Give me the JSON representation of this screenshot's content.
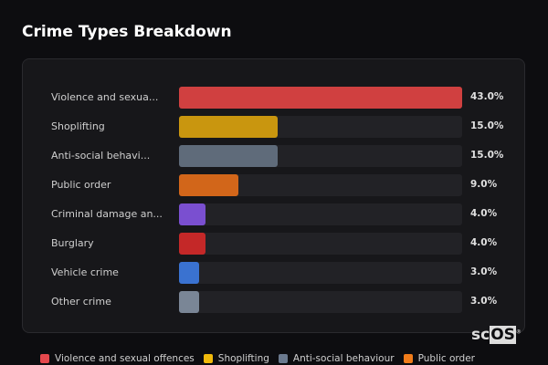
{
  "title": "Crime Types Breakdown",
  "chart_data": {
    "type": "bar",
    "orientation": "horizontal",
    "title": "Crime Types Breakdown",
    "categories": [
      "Violence and sexua...",
      "Shoplifting",
      "Anti-social behavi...",
      "Public order",
      "Criminal damage an...",
      "Burglary",
      "Vehicle crime",
      "Other crime"
    ],
    "values": [
      43.0,
      15.0,
      15.0,
      9.0,
      4.0,
      4.0,
      3.0,
      3.0
    ],
    "value_labels": [
      "43.0%",
      "15.0%",
      "15.0%",
      "9.0%",
      "4.0%",
      "4.0%",
      "3.0%",
      "3.0%"
    ],
    "colors": [
      "#d04040",
      "#c9960f",
      "#5f6b7a",
      "#d2661a",
      "#7a4fd0",
      "#c42828",
      "#3a72d0",
      "#7a8696"
    ],
    "unit": "%",
    "legend_position": "bottom",
    "legend": [
      {
        "label": "Violence and sexual offences",
        "color": "#e5484d"
      },
      {
        "label": "Shoplifting",
        "color": "#f0b90b"
      },
      {
        "label": "Anti-social behaviour",
        "color": "#6b7a8f"
      },
      {
        "label": "Public order",
        "color": "#f07c1a"
      }
    ]
  },
  "logo": {
    "text_a": "sc",
    "text_b": "OS",
    "mark": "®"
  }
}
